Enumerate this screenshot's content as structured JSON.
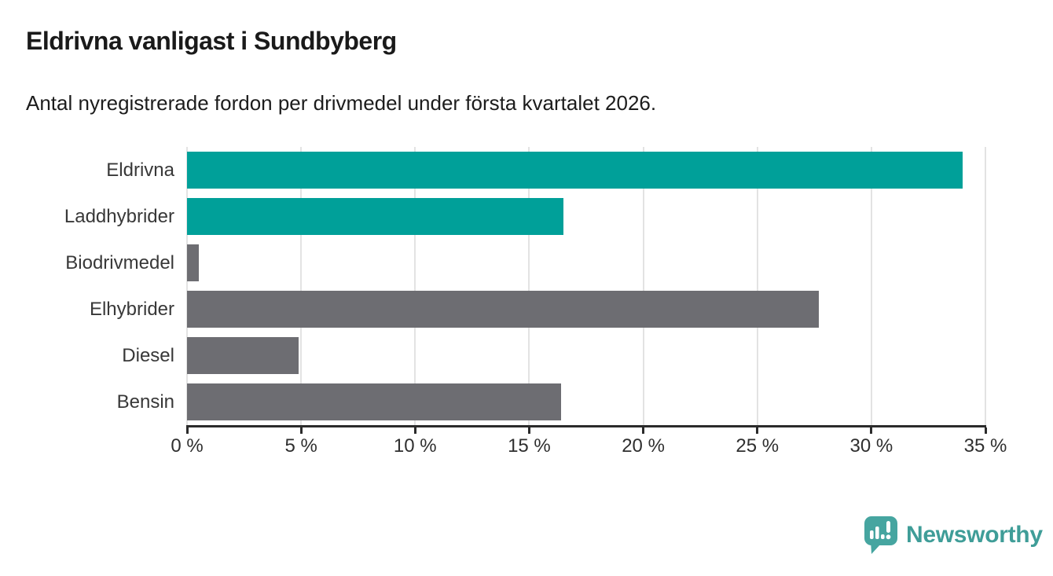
{
  "title": "Eldrivna vanligast i Sundbyberg",
  "subtitle": "Antal nyregistrerade fordon per drivmedel under första kvartalet 2026.",
  "branding": {
    "name": "Newsworthy",
    "icon_color": "#46a5a0",
    "text_color": "#3f9d98"
  },
  "chart_data": {
    "type": "bar",
    "orientation": "horizontal",
    "title": "Eldrivna vanligast i Sundbyberg",
    "subtitle": "Antal nyregistrerade fordon per drivmedel under första kvartalet 2026.",
    "categories": [
      "Eldrivna",
      "Laddhybrider",
      "Biodrivmedel",
      "Elhybrider",
      "Diesel",
      "Bensin"
    ],
    "values": [
      34.0,
      16.5,
      0.5,
      27.7,
      4.9,
      16.4
    ],
    "unit": "%",
    "bar_colors": [
      "#00a099",
      "#00a099",
      "#6d6d72",
      "#6d6d72",
      "#6d6d72",
      "#6d6d72"
    ],
    "highlight_color": "#00a099",
    "default_color": "#6d6d72",
    "xlabel": "",
    "ylabel": "",
    "xlim": [
      0,
      35
    ],
    "x_tick_values": [
      0,
      5,
      10,
      15,
      20,
      25,
      30,
      35
    ],
    "x_ticks": [
      "0 %",
      "5 %",
      "10 %",
      "15 %",
      "20 %",
      "25 %",
      "30 %",
      "35 %"
    ],
    "grid": true,
    "legend": false
  }
}
